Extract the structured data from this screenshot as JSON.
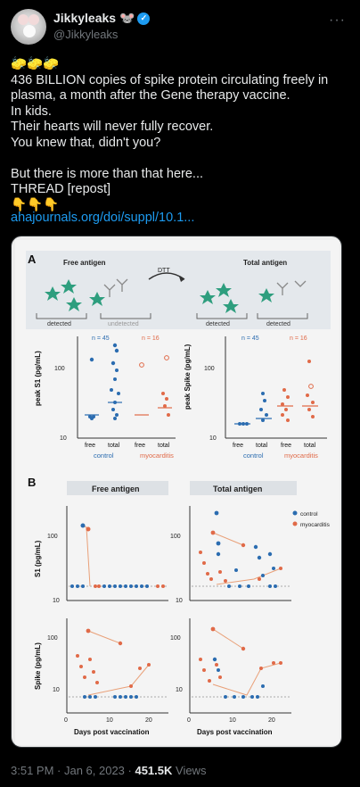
{
  "author": {
    "display_name": "Jikkyleaks 🐭",
    "handle": "@Jikkyleaks",
    "verified_icon": "verified-badge-icon"
  },
  "menu": {
    "more_label": "···"
  },
  "tweet": {
    "emojis": "🧽🧽🧽",
    "text": "436 BILLION copies of spike protein circulating freely in plasma, a month after the Gene therapy vaccine.\nIn kids.\nTheir hearts will never fully recover.\nYou knew that, didn't you?\n\nBut there is more than that here...\nTHREAD [repost]\n👇👇👇",
    "link": "ahajournals.org/doi/suppl/10.1..."
  },
  "figure": {
    "panel_a": {
      "label": "A",
      "free_antigen": "Free antigen",
      "total_antigen": "Total antigen",
      "dtt": "DTT",
      "detected": "detected",
      "undetected": "undetected",
      "detected2": "detected",
      "detected3": "detected",
      "left_ylabel": "peak S1 (pg/mL)",
      "right_ylabel": "peak Spike (pg/mL)",
      "n_control": "n = 45",
      "n_myo": "n = 16",
      "n_control_r": "n = 45",
      "n_myo_r": "n = 16",
      "ticks": [
        "100",
        "10"
      ],
      "xcats_left": [
        "free",
        "total",
        "free",
        "total"
      ],
      "xcats_right": [
        "free",
        "total",
        "free",
        "total"
      ],
      "group_control": "control",
      "group_myo": "myocarditis"
    },
    "panel_b": {
      "label": "B",
      "col1": "Free antigen",
      "col2": "Total antigen",
      "s1_ylabel": "S1 (pg/mL)",
      "spike_ylabel": "Spike (pg/mL)",
      "xlabel": "Days post vaccination",
      "xticks": [
        "0",
        "10",
        "20"
      ],
      "yticks": [
        "100",
        "10"
      ],
      "legend_control": "control",
      "legend_myo": "myocarditis"
    },
    "colors": {
      "control": "#2b6cb0",
      "myocarditis": "#e06a48"
    }
  },
  "footer": {
    "time": "3:51 PM · Jan 6, 2023 · ",
    "views_count": "451.5K",
    "views_label": " Views"
  }
}
